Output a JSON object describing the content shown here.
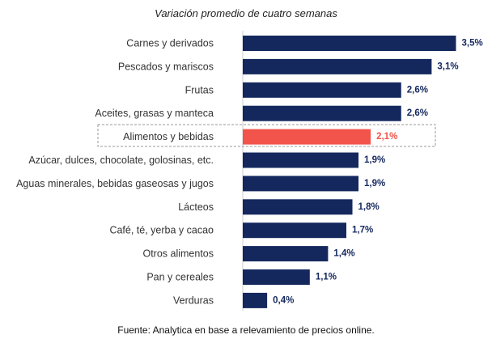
{
  "chart_data": {
    "type": "bar",
    "orientation": "horizontal",
    "title": "Variación promedio de cuatro semanas",
    "source": "Fuente: Analytica en base a relevamiento de precios online.",
    "categories": [
      "Carnes y derivados",
      "Pescados y mariscos",
      "Frutas",
      "Aceites, grasas y manteca",
      "Alimentos y bebidas",
      "Azúcar, dulces, chocolate, golosinas, etc.",
      "Aguas minerales, bebidas gaseosas y jugos",
      "Lácteos",
      "Café, té, yerba y cacao",
      "Otros alimentos",
      "Pan y cereales",
      "Verduras"
    ],
    "values": [
      3.5,
      3.1,
      2.6,
      2.6,
      2.1,
      1.9,
      1.9,
      1.8,
      1.7,
      1.4,
      1.1,
      0.4
    ],
    "value_labels": [
      "3,5%",
      "3,1%",
      "2,6%",
      "2,6%",
      "2,1%",
      "1,9%",
      "1,9%",
      "1,8%",
      "1,7%",
      "1,4%",
      "1,1%",
      "0,4%"
    ],
    "highlight_category": "Alimentos y bebidas",
    "xlim": [
      0,
      3.5
    ],
    "grid": false,
    "legend": "none",
    "colors": {
      "bar": "#14285e",
      "highlight": "#f2534b",
      "label": "#14285e",
      "highlight_label": "#f2534b",
      "axis": "#cfcfcf",
      "box": "#9a9a9a"
    }
  }
}
